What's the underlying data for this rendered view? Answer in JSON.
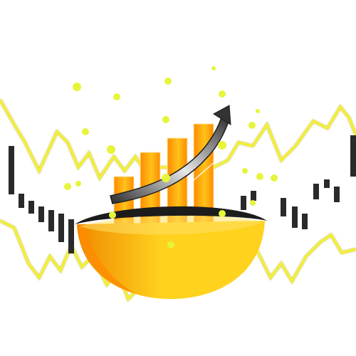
{
  "illustration": {
    "subject": "bowl-with-growth-bar-chart",
    "icon": "growth-chart-bowl-icon",
    "bar_levels": [
      0.35,
      0.52,
      0.62,
      0.72
    ],
    "bar_count": 4,
    "colors": {
      "background": "#ffffff",
      "wave_line": "#f2ee3c",
      "wave_outline": "#b8b25a",
      "candles": "#2a2a2a",
      "bowl_light": "#ffd21e",
      "bowl_dark": "#f08a00",
      "bowl_rim": "#1c1c1c",
      "bar_light": "#ffc21a",
      "bar_dark": "#ff8a00",
      "arrow": "#3a3a3a",
      "dots": "#e6f53a"
    }
  }
}
